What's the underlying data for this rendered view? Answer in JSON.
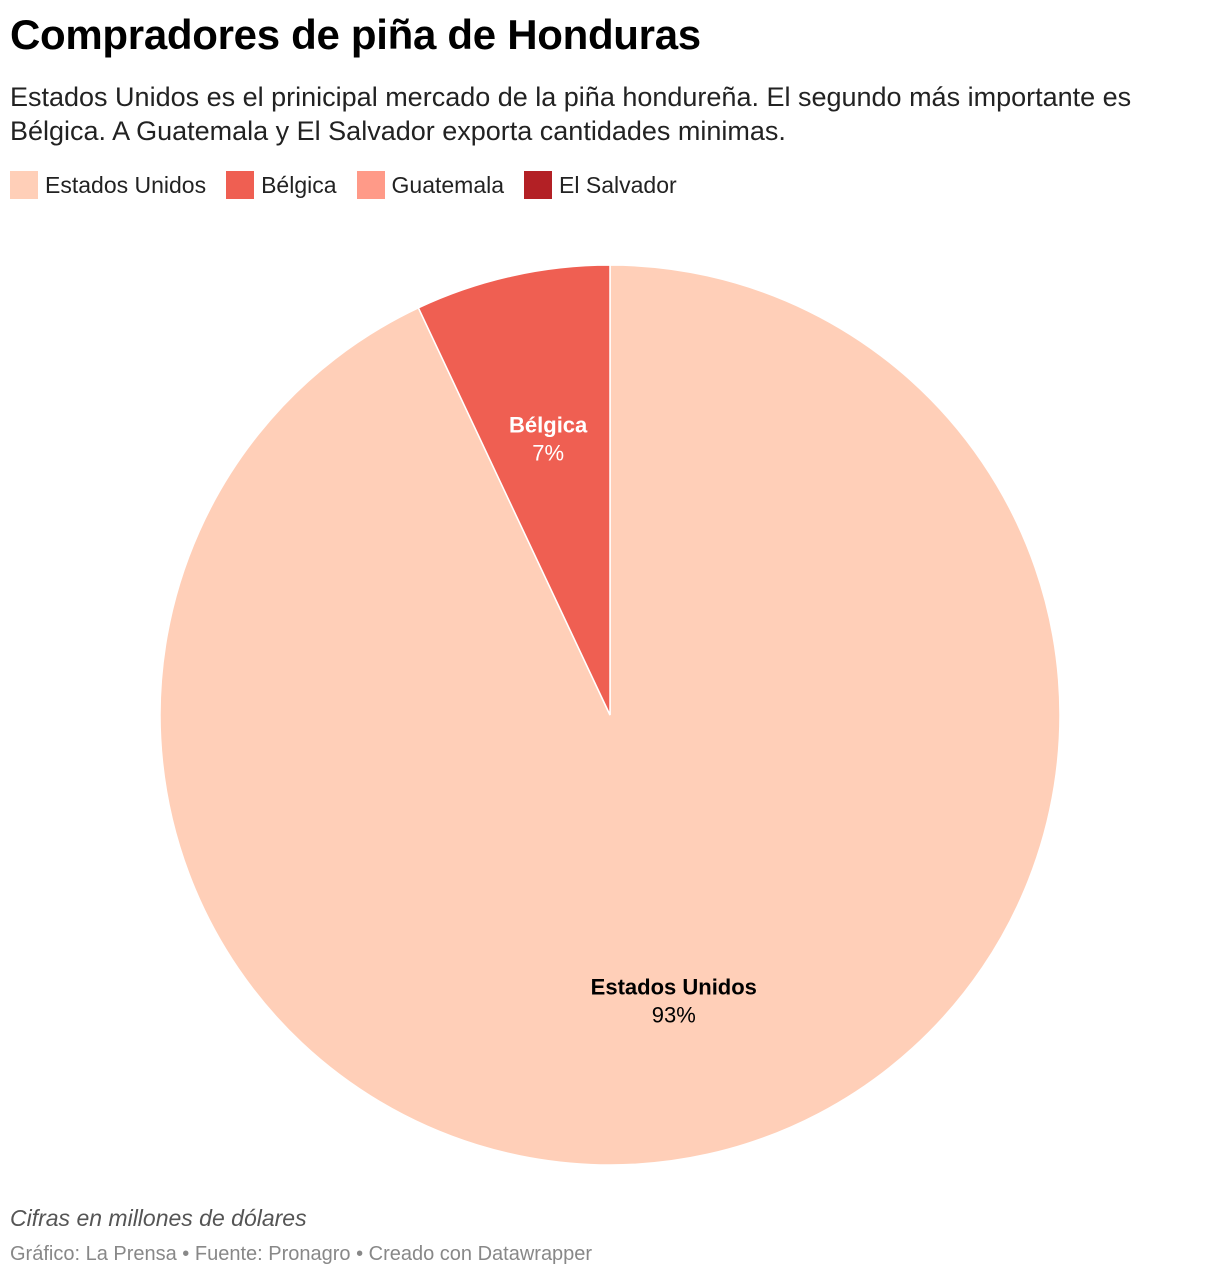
{
  "header": {
    "title": "Compradores de piña de Honduras",
    "subtitle": "Estados Unidos es el prinicipal mercado de la piña hondureña. El segundo más importante es Bélgica. A Guatemala y El Salvador exporta cantidades minimas."
  },
  "chart_data": {
    "type": "pie",
    "categories": [
      "Estados Unidos",
      "Bélgica",
      "Guatemala",
      "El Salvador"
    ],
    "values": [
      93,
      7,
      0,
      0
    ],
    "value_labels": [
      "93%",
      "7%",
      "",
      ""
    ],
    "colors": [
      "#ffcfb8",
      "#ef5f52",
      "#ff9a88",
      "#b32025"
    ],
    "label_colors": [
      "#000000",
      "#ffffff",
      "#000000",
      "#ffffff"
    ],
    "legend_position": "top-left"
  },
  "footer": {
    "notes": "Cifras en millones de dólares",
    "credits": "Gráfico: La Prensa • Fuente: Pronagro • Creado con Datawrapper"
  }
}
